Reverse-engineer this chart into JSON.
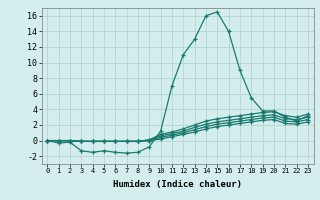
{
  "xlabel": "Humidex (Indice chaleur)",
  "background_color": "#d4eeee",
  "grid_color": "#b8d8d8",
  "line_color": "#1a7a6e",
  "xlim": [
    -0.5,
    23.5
  ],
  "ylim": [
    -3,
    17
  ],
  "xticks": [
    0,
    1,
    2,
    3,
    4,
    5,
    6,
    7,
    8,
    9,
    10,
    11,
    12,
    13,
    14,
    15,
    16,
    17,
    18,
    19,
    20,
    21,
    22,
    23
  ],
  "yticks": [
    -2,
    0,
    2,
    4,
    6,
    8,
    10,
    12,
    14,
    16
  ],
  "lines": [
    {
      "x": [
        0,
        1,
        2,
        3,
        4,
        5,
        6,
        7,
        8,
        9,
        10,
        11,
        12,
        13,
        14,
        15,
        16,
        17,
        18,
        19,
        20,
        21,
        22,
        23
      ],
      "y": [
        0.0,
        -0.3,
        -0.2,
        -1.3,
        -1.5,
        -1.3,
        -1.5,
        -1.6,
        -1.5,
        -0.8,
        1.2,
        7.0,
        11.0,
        13.0,
        16.0,
        16.5,
        14.0,
        9.0,
        5.5,
        3.8,
        3.8,
        3.0,
        2.5,
        3.2
      ]
    },
    {
      "x": [
        0,
        1,
        2,
        3,
        4,
        5,
        6,
        7,
        8,
        9,
        10,
        11,
        12,
        13,
        14,
        15,
        16,
        17,
        18,
        19,
        20,
        21,
        22,
        23
      ],
      "y": [
        0.0,
        0.0,
        0.0,
        -0.1,
        -0.1,
        -0.1,
        -0.1,
        -0.1,
        -0.1,
        0.1,
        0.8,
        1.1,
        1.5,
        2.0,
        2.5,
        2.8,
        3.0,
        3.2,
        3.4,
        3.6,
        3.7,
        3.2,
        3.0,
        3.4
      ]
    },
    {
      "x": [
        0,
        1,
        2,
        3,
        4,
        5,
        6,
        7,
        8,
        9,
        10,
        11,
        12,
        13,
        14,
        15,
        16,
        17,
        18,
        19,
        20,
        21,
        22,
        23
      ],
      "y": [
        0.0,
        0.0,
        0.0,
        -0.1,
        -0.1,
        -0.1,
        -0.1,
        -0.1,
        -0.1,
        0.1,
        0.6,
        0.9,
        1.2,
        1.7,
        2.1,
        2.4,
        2.6,
        2.8,
        3.0,
        3.2,
        3.3,
        2.8,
        2.7,
        3.0
      ]
    },
    {
      "x": [
        0,
        1,
        2,
        3,
        4,
        5,
        6,
        7,
        8,
        9,
        10,
        11,
        12,
        13,
        14,
        15,
        16,
        17,
        18,
        19,
        20,
        21,
        22,
        23
      ],
      "y": [
        0.0,
        0.0,
        0.0,
        -0.1,
        -0.1,
        -0.1,
        -0.1,
        -0.1,
        -0.1,
        0.0,
        0.4,
        0.7,
        1.0,
        1.4,
        1.8,
        2.1,
        2.3,
        2.5,
        2.7,
        2.9,
        3.0,
        2.5,
        2.4,
        2.7
      ]
    },
    {
      "x": [
        0,
        1,
        2,
        3,
        4,
        5,
        6,
        7,
        8,
        9,
        10,
        11,
        12,
        13,
        14,
        15,
        16,
        17,
        18,
        19,
        20,
        21,
        22,
        23
      ],
      "y": [
        0.0,
        0.0,
        0.0,
        -0.1,
        -0.1,
        -0.1,
        -0.1,
        -0.1,
        -0.1,
        0.0,
        0.2,
        0.5,
        0.8,
        1.1,
        1.5,
        1.8,
        2.0,
        2.2,
        2.4,
        2.6,
        2.7,
        2.2,
        2.1,
        2.4
      ]
    }
  ]
}
